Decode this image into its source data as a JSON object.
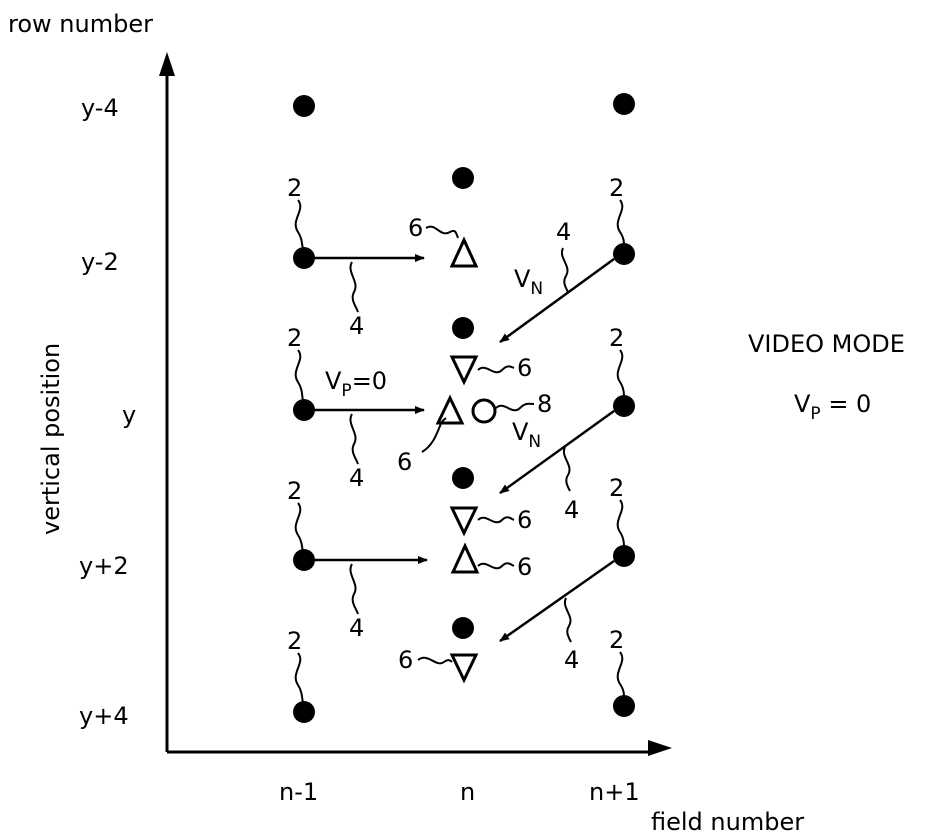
{
  "axes": {
    "y_title": "row number",
    "y_side_label": "vertical position",
    "x_title": "field number"
  },
  "rows": {
    "r0": "y-4",
    "r1": "y-2",
    "r2": "y",
    "r3": "y+2",
    "r4": "y+4"
  },
  "fields": {
    "f0": "n-1",
    "f1": "n",
    "f2": "n+1"
  },
  "mode_text": {
    "title": "VIDEO MODE",
    "v": "V",
    "sub": "P",
    "eq": " = 0"
  },
  "vector_labels": {
    "vp_main": "V",
    "vp_sub": "P",
    "vp_eq": "=0",
    "vn_main": "V",
    "vn_sub": "N"
  },
  "refs": {
    "pixel": "2",
    "vector": "4",
    "interp": "6",
    "output": "8"
  }
}
